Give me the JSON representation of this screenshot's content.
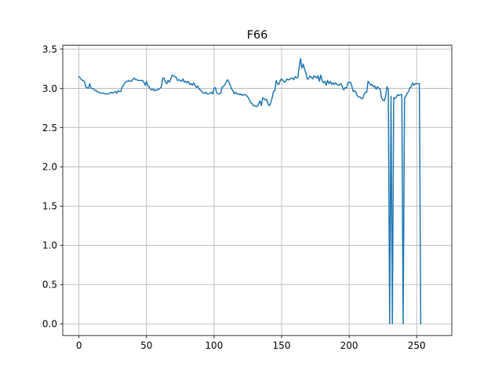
{
  "chart_data": {
    "type": "line",
    "title": "F66",
    "xlabel": "",
    "ylabel": "",
    "xlim": [
      -12,
      276
    ],
    "ylim": [
      -0.15,
      3.55
    ],
    "grid": true,
    "line_color": "#1f77b4",
    "grid_color": "#b0b0b0",
    "x_ticks": [
      0,
      50,
      100,
      150,
      200,
      250
    ],
    "y_ticks": [
      0.0,
      0.5,
      1.0,
      1.5,
      2.0,
      2.5,
      3.0,
      3.5
    ],
    "x_tick_labels": [
      "0",
      "50",
      "100",
      "150",
      "200",
      "250"
    ],
    "y_tick_labels": [
      "0.0",
      "0.5",
      "1.0",
      "1.5",
      "2.0",
      "2.5",
      "3.0",
      "3.5"
    ],
    "series": [
      {
        "values": [
          3.15,
          3.13,
          3.11,
          3.1,
          3.09,
          3.02,
          3.01,
          3.0,
          3.06,
          3.0,
          3.0,
          2.99,
          2.97,
          2.97,
          2.95,
          2.95,
          2.94,
          2.94,
          2.94,
          2.93,
          2.93,
          2.93,
          2.93,
          2.94,
          2.95,
          2.94,
          2.95,
          2.96,
          2.94,
          2.97,
          2.96,
          2.96,
          3.02,
          3.04,
          3.07,
          3.09,
          3.09,
          3.1,
          3.09,
          3.09,
          3.12,
          3.13,
          3.11,
          3.11,
          3.1,
          3.1,
          3.1,
          3.1,
          3.08,
          3.04,
          3.09,
          3.03,
          3.02,
          2.99,
          2.98,
          2.99,
          2.97,
          2.98,
          2.98,
          2.99,
          3.0,
          3.02,
          3.13,
          3.13,
          3.08,
          3.06,
          3.1,
          3.08,
          3.12,
          3.17,
          3.16,
          3.15,
          3.14,
          3.1,
          3.11,
          3.1,
          3.09,
          3.12,
          3.08,
          3.09,
          3.07,
          3.09,
          3.05,
          3.06,
          3.04,
          3.07,
          3.04,
          3.01,
          3.03,
          2.99,
          2.98,
          2.96,
          2.94,
          2.94,
          2.95,
          2.93,
          2.93,
          2.94,
          2.95,
          2.93,
          3.0,
          3.01,
          2.94,
          2.93,
          2.93,
          2.94,
          3.02,
          3.02,
          3.05,
          3.08,
          3.11,
          3.08,
          3.04,
          2.99,
          2.97,
          2.93,
          2.95,
          2.93,
          2.93,
          2.92,
          2.93,
          2.91,
          2.92,
          2.92,
          2.91,
          2.89,
          2.86,
          2.82,
          2.81,
          2.78,
          2.78,
          2.77,
          2.77,
          2.8,
          2.84,
          2.78,
          2.88,
          2.87,
          2.85,
          2.86,
          2.8,
          2.78,
          2.82,
          2.88,
          2.96,
          2.97,
          3.1,
          3.06,
          3.05,
          3.1,
          3.12,
          3.1,
          3.08,
          3.09,
          3.12,
          3.11,
          3.11,
          3.13,
          3.13,
          3.11,
          3.15,
          3.13,
          3.14,
          3.27,
          3.38,
          3.26,
          3.31,
          3.24,
          3.2,
          3.12,
          3.12,
          3.16,
          3.14,
          3.12,
          3.16,
          3.15,
          3.13,
          3.16,
          3.09,
          3.17,
          3.1,
          3.07,
          3.09,
          3.04,
          3.1,
          3.06,
          3.09,
          3.05,
          3.07,
          3.05,
          3.07,
          3.05,
          3.04,
          3.05,
          3.06,
          3.02,
          2.98,
          3.01,
          3.0,
          3.07,
          3.08,
          3.08,
          3.03,
          2.96,
          2.97,
          2.95,
          2.91,
          2.89,
          2.89,
          2.87,
          2.87,
          2.92,
          2.95,
          2.95,
          3.09,
          3.07,
          3.04,
          3.05,
          3.02,
          3.03,
          2.99,
          3.02,
          3.0,
          2.99,
          2.88,
          2.85,
          2.84,
          2.9,
          3.02,
          2.99,
          0.0,
          2.9,
          0.0,
          2.88,
          2.87,
          2.89,
          2.92,
          2.91,
          2.92,
          2.92,
          0.0,
          2.88,
          2.9,
          2.94,
          2.96,
          3.01,
          3.02,
          3.07,
          3.04,
          3.06,
          3.06,
          3.06,
          3.06,
          0.0
        ]
      }
    ]
  }
}
